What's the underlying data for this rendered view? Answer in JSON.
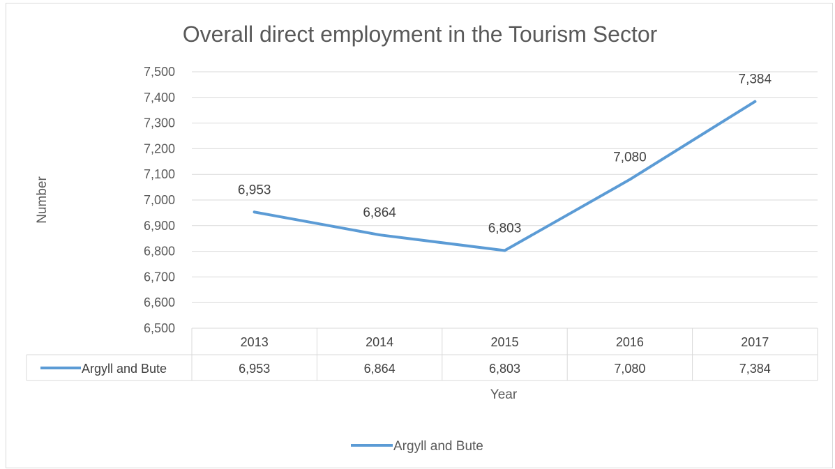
{
  "chart_data": {
    "type": "line",
    "title": "Overall direct employment in the Tourism Sector",
    "xlabel": "Year",
    "ylabel": "Number",
    "categories": [
      "2013",
      "2014",
      "2015",
      "2016",
      "2017"
    ],
    "series": [
      {
        "name": "Argyll and Bute",
        "values": [
          6953,
          6864,
          6803,
          7080,
          7384
        ],
        "color": "#5b9bd5"
      }
    ],
    "data_labels": [
      "6,953",
      "6,864",
      "6,803",
      "7,080",
      "7,384"
    ],
    "ylim": [
      6500,
      7500
    ],
    "yticks": [
      "6,500",
      "6,600",
      "6,700",
      "6,800",
      "6,900",
      "7,000",
      "7,100",
      "7,200",
      "7,300",
      "7,400",
      "7,500"
    ],
    "grid": true,
    "legend": "bottom",
    "data_table": true
  }
}
